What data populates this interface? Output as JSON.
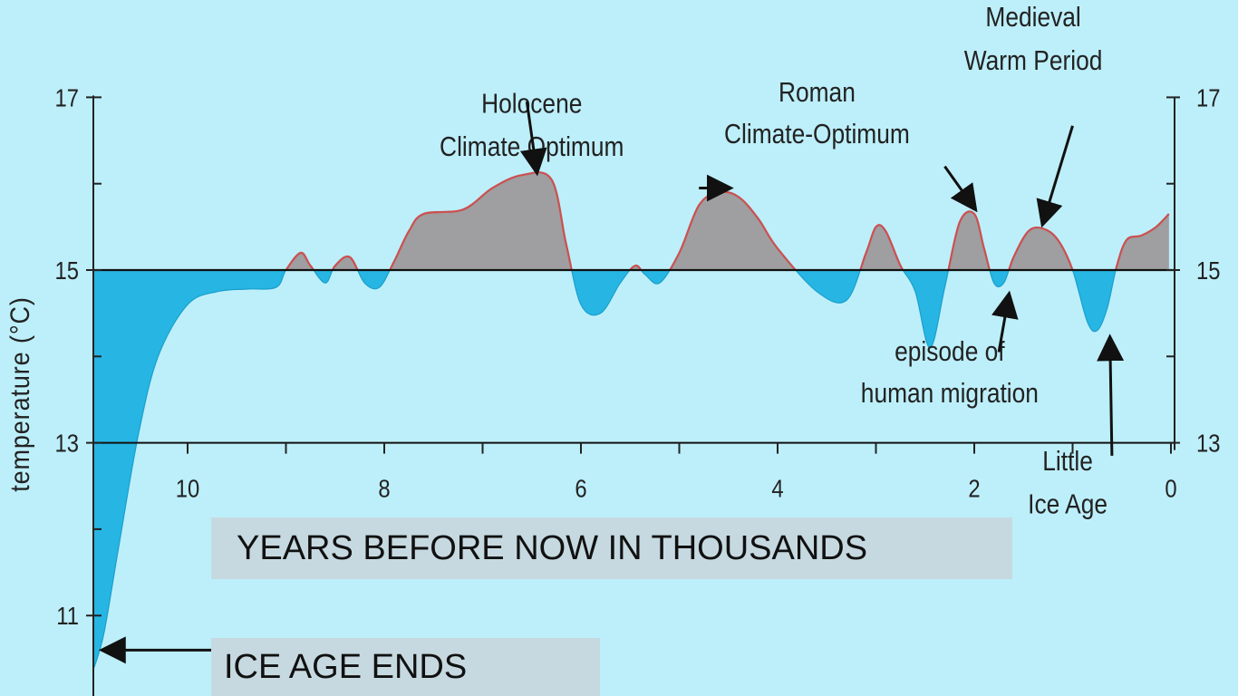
{
  "chart_data": {
    "type": "area",
    "ylabel": "temperature (°C)",
    "xlabel": "YEARS BEFORE NOW IN THOUSANDS",
    "baseline": 15,
    "xlim": [
      11,
      0
    ],
    "ylim": [
      10.7,
      17.2
    ],
    "x_ticks": [
      10,
      8,
      6,
      4,
      2,
      0
    ],
    "y_ticks_left": [
      17,
      15,
      13,
      11
    ],
    "y_ticks_right": [
      17,
      15,
      13
    ],
    "colors": {
      "above": "#9f9ea0",
      "below": "#27b6e3",
      "above_outline": "#cc5050",
      "background": "#bdeffa",
      "axis": "#222222"
    },
    "x": [
      10.95,
      10.85,
      10.7,
      10.5,
      10.3,
      10.0,
      9.7,
      9.4,
      9.1,
      9.0,
      8.85,
      8.75,
      8.6,
      8.5,
      8.35,
      8.2,
      8.05,
      7.9,
      7.75,
      7.6,
      7.2,
      6.9,
      6.6,
      6.3,
      6.15,
      6.0,
      5.8,
      5.6,
      5.45,
      5.35,
      5.2,
      5.0,
      4.8,
      4.6,
      4.4,
      4.2,
      4.0,
      3.6,
      3.3,
      3.1,
      3.0,
      2.9,
      2.75,
      2.6,
      2.45,
      2.3,
      2.15,
      2.0,
      1.9,
      1.8,
      1.7,
      1.6,
      1.45,
      1.3,
      1.15,
      1.0,
      0.85,
      0.75,
      0.65,
      0.55,
      0.45,
      0.3,
      0.15,
      0.02
    ],
    "values": [
      10.4,
      10.8,
      11.8,
      13.1,
      14.0,
      14.6,
      14.75,
      14.78,
      14.8,
      15.0,
      15.2,
      15.05,
      14.85,
      15.05,
      15.15,
      14.85,
      14.8,
      15.1,
      15.45,
      15.65,
      15.7,
      15.95,
      16.1,
      16.05,
      15.3,
      14.6,
      14.5,
      14.85,
      15.05,
      14.95,
      14.85,
      15.2,
      15.75,
      15.9,
      15.85,
      15.6,
      15.25,
      14.75,
      14.65,
      15.2,
      15.5,
      15.45,
      15.05,
      14.75,
      14.1,
      14.8,
      15.55,
      15.65,
      15.25,
      14.85,
      14.85,
      15.15,
      15.45,
      15.48,
      15.35,
      15.0,
      14.4,
      14.3,
      14.55,
      15.05,
      15.35,
      15.4,
      15.5,
      15.65
    ],
    "annotations": [
      {
        "label_lines": [
          "Holocene",
          "Climate Optimum"
        ],
        "label_xy": [
          6.5,
          16.82
        ],
        "line_gap": 0.5,
        "arrow_from": [
          6.55,
          16.95
        ],
        "arrow_to": [
          6.45,
          16.15
        ]
      },
      {
        "label_lines": [
          "Roman",
          "Climate-Optimum"
        ],
        "label_xy": [
          3.6,
          16.95
        ],
        "line_gap": 0.48,
        "arrow_from": [
          2.3,
          16.2
        ],
        "arrow_to": [
          2.0,
          15.72
        ]
      },
      {
        "label_lines": [
          "Medieval",
          "Warm Period"
        ],
        "label_xy": [
          1.4,
          17.82
        ],
        "line_gap": 0.5,
        "arrow_from": [
          1.0,
          16.67
        ],
        "arrow_to": [
          1.3,
          15.55
        ]
      },
      {
        "label_lines": [],
        "label_xy": [
          0,
          0
        ],
        "line_gap": 0,
        "arrow_from": [
          4.8,
          15.95
        ],
        "arrow_to": [
          4.5,
          15.95
        ]
      },
      {
        "label_lines": [
          "episode of",
          "human migration"
        ],
        "label_xy": [
          2.25,
          13.95
        ],
        "line_gap": 0.48,
        "arrow_from": [
          1.75,
          14.05
        ],
        "arrow_to": [
          1.65,
          14.7
        ]
      },
      {
        "label_lines": [
          "Little",
          "Ice Age"
        ],
        "label_xy": [
          1.05,
          12.68
        ],
        "line_gap": 0.5,
        "arrow_from": [
          0.6,
          12.85
        ],
        "arrow_to": [
          0.62,
          14.2
        ]
      },
      {
        "label_lines": [],
        "label_xy": [
          0,
          0
        ],
        "line_gap": 0,
        "arrow_from": [
          9.15,
          10.6
        ],
        "arrow_to": [
          10.85,
          10.6
        ]
      }
    ]
  },
  "captions": {
    "years_axis": "YEARS BEFORE NOW IN THOUSANDS",
    "ice_age": "ICE AGE ENDS"
  }
}
